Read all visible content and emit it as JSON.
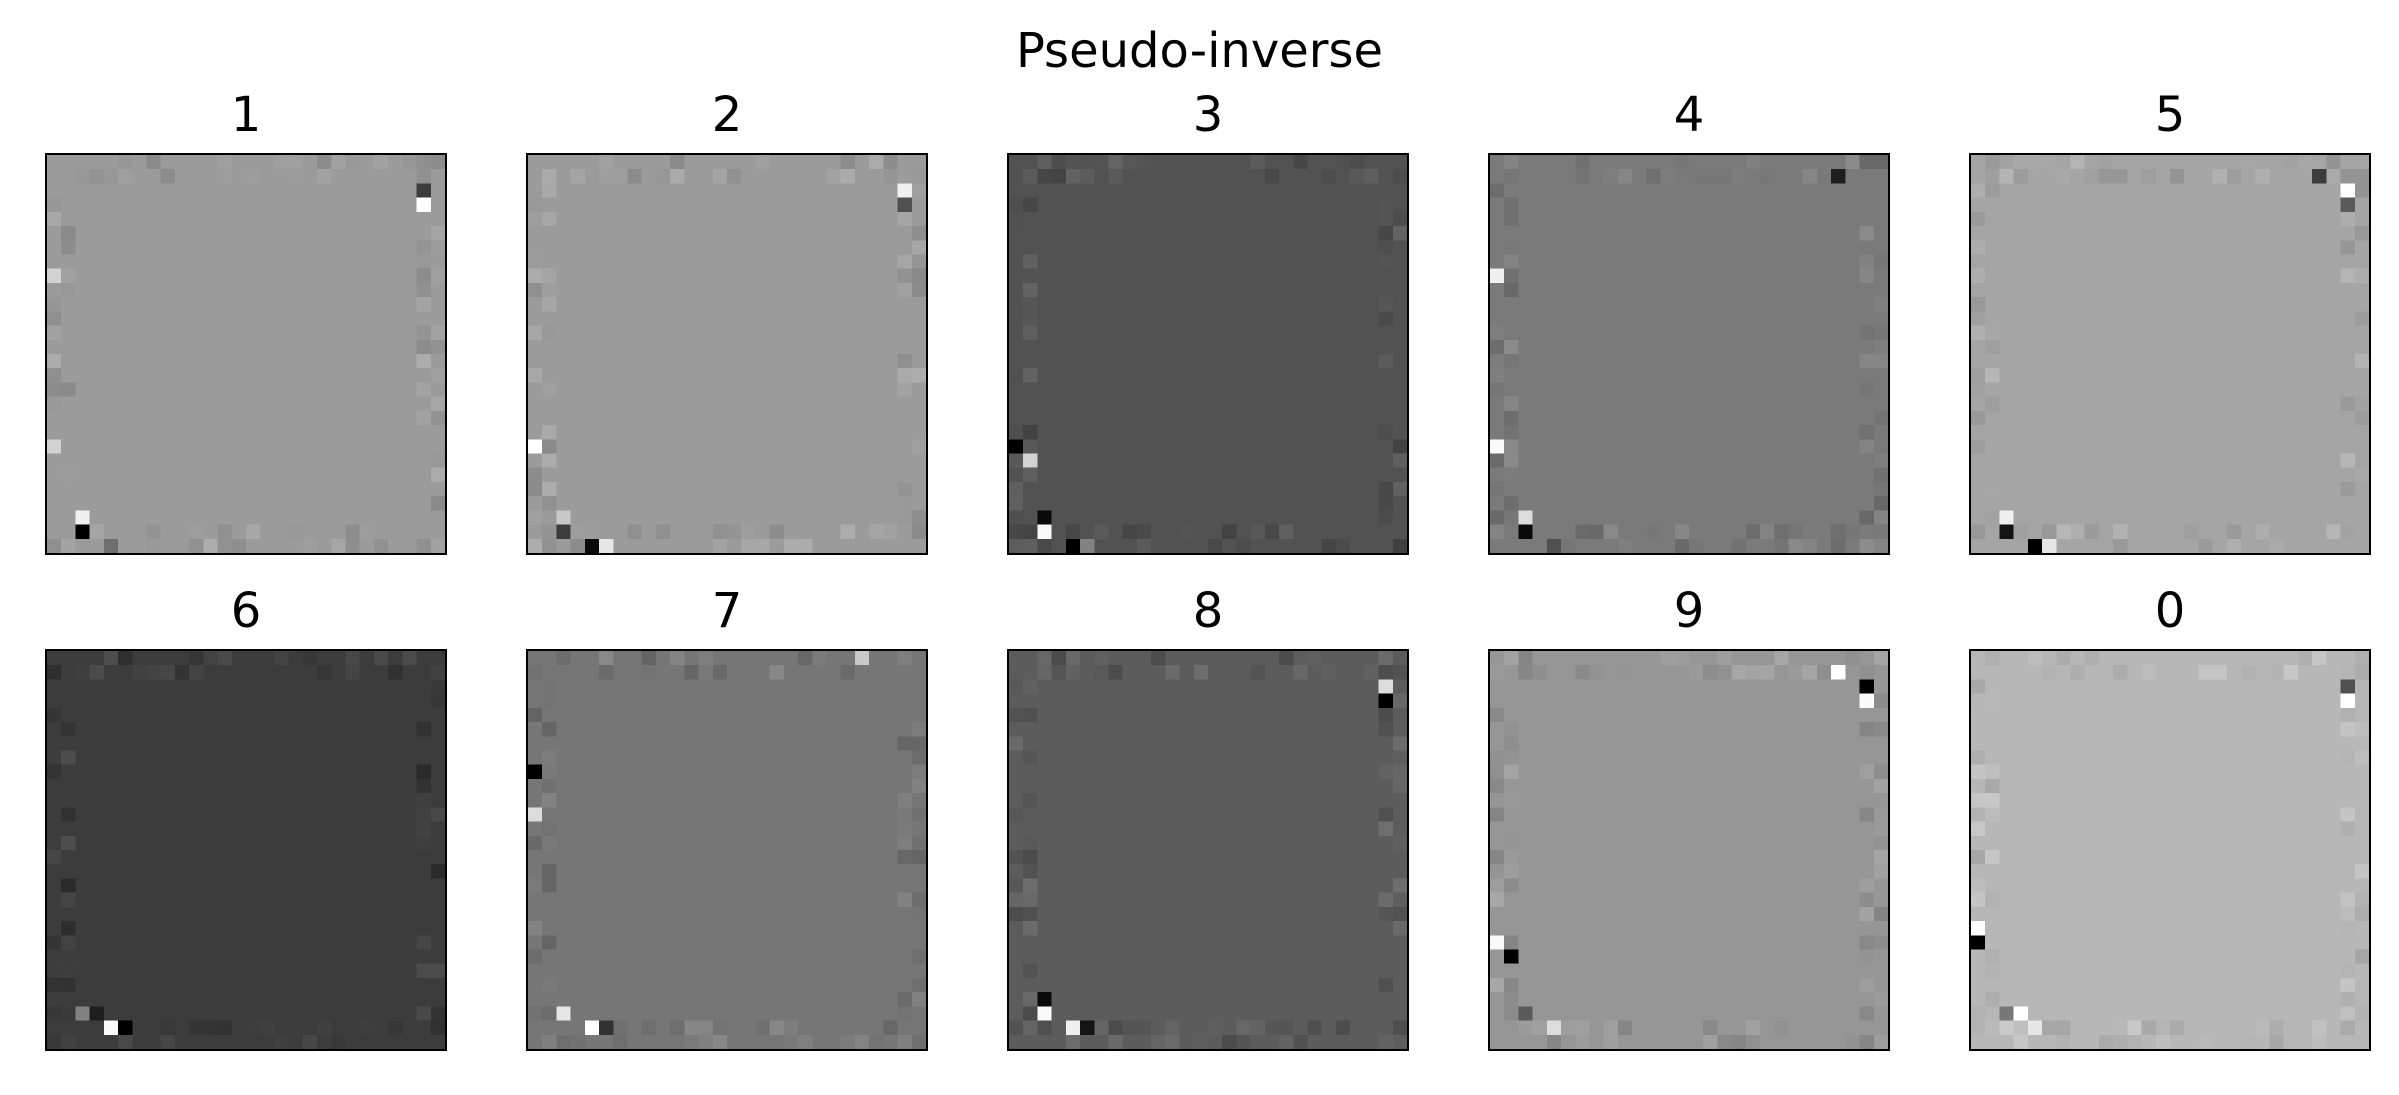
{
  "chart_data": {
    "type": "heatmap",
    "title": "Pseudo-inverse",
    "colormap": "gray",
    "grid": false,
    "axis_ticks": false,
    "layout": "2x5 grid",
    "panels": [
      {
        "label": "1",
        "grid_size": [
          28,
          28
        ],
        "background_gray": 155,
        "outliers": [
          {
            "row": 2,
            "col": 26,
            "gray": 60
          },
          {
            "row": 3,
            "col": 26,
            "gray": 255
          },
          {
            "row": 25,
            "col": 2,
            "gray": 240
          },
          {
            "row": 26,
            "col": 2,
            "gray": 0
          },
          {
            "row": 27,
            "col": 4,
            "gray": 110
          },
          {
            "row": 8,
            "col": 0,
            "gray": 210
          },
          {
            "row": 20,
            "col": 0,
            "gray": 210
          }
        ]
      },
      {
        "label": "2",
        "grid_size": [
          28,
          28
        ],
        "background_gray": 155,
        "outliers": [
          {
            "row": 2,
            "col": 26,
            "gray": 240
          },
          {
            "row": 3,
            "col": 26,
            "gray": 80
          },
          {
            "row": 20,
            "col": 0,
            "gray": 255
          },
          {
            "row": 27,
            "col": 4,
            "gray": 10
          },
          {
            "row": 27,
            "col": 5,
            "gray": 230
          },
          {
            "row": 26,
            "col": 2,
            "gray": 60
          },
          {
            "row": 25,
            "col": 2,
            "gray": 200
          }
        ]
      },
      {
        "label": "3",
        "grid_size": [
          28,
          28
        ],
        "background_gray": 82,
        "outliers": [
          {
            "row": 20,
            "col": 0,
            "gray": 0
          },
          {
            "row": 21,
            "col": 1,
            "gray": 210
          },
          {
            "row": 25,
            "col": 2,
            "gray": 10
          },
          {
            "row": 26,
            "col": 2,
            "gray": 250
          },
          {
            "row": 27,
            "col": 4,
            "gray": 0
          },
          {
            "row": 27,
            "col": 5,
            "gray": 130
          }
        ]
      },
      {
        "label": "4",
        "grid_size": [
          28,
          28
        ],
        "background_gray": 122,
        "outliers": [
          {
            "row": 1,
            "col": 24,
            "gray": 30
          },
          {
            "row": 8,
            "col": 0,
            "gray": 240
          },
          {
            "row": 20,
            "col": 0,
            "gray": 250
          },
          {
            "row": 26,
            "col": 2,
            "gray": 10
          },
          {
            "row": 25,
            "col": 2,
            "gray": 220
          },
          {
            "row": 27,
            "col": 4,
            "gray": 80
          }
        ]
      },
      {
        "label": "5",
        "grid_size": [
          28,
          28
        ],
        "background_gray": 165,
        "outliers": [
          {
            "row": 1,
            "col": 24,
            "gray": 60
          },
          {
            "row": 2,
            "col": 26,
            "gray": 255
          },
          {
            "row": 3,
            "col": 26,
            "gray": 90
          },
          {
            "row": 26,
            "col": 2,
            "gray": 20
          },
          {
            "row": 25,
            "col": 2,
            "gray": 240
          },
          {
            "row": 27,
            "col": 4,
            "gray": 0
          },
          {
            "row": 27,
            "col": 5,
            "gray": 230
          }
        ]
      },
      {
        "label": "6",
        "grid_size": [
          28,
          28
        ],
        "background_gray": 60,
        "outliers": [
          {
            "row": 26,
            "col": 4,
            "gray": 250
          },
          {
            "row": 26,
            "col": 5,
            "gray": 0
          },
          {
            "row": 25,
            "col": 2,
            "gray": 130
          },
          {
            "row": 25,
            "col": 3,
            "gray": 30
          }
        ]
      },
      {
        "label": "7",
        "grid_size": [
          28,
          28
        ],
        "background_gray": 118,
        "outliers": [
          {
            "row": 0,
            "col": 23,
            "gray": 200
          },
          {
            "row": 8,
            "col": 0,
            "gray": 0
          },
          {
            "row": 11,
            "col": 0,
            "gray": 220
          },
          {
            "row": 25,
            "col": 2,
            "gray": 230
          },
          {
            "row": 26,
            "col": 4,
            "gray": 255
          },
          {
            "row": 26,
            "col": 5,
            "gray": 50
          }
        ]
      },
      {
        "label": "8",
        "grid_size": [
          28,
          28
        ],
        "background_gray": 92,
        "outliers": [
          {
            "row": 2,
            "col": 26,
            "gray": 220
          },
          {
            "row": 3,
            "col": 26,
            "gray": 0
          },
          {
            "row": 24,
            "col": 2,
            "gray": 10
          },
          {
            "row": 25,
            "col": 2,
            "gray": 250
          },
          {
            "row": 26,
            "col": 4,
            "gray": 240
          },
          {
            "row": 26,
            "col": 5,
            "gray": 20
          }
        ]
      },
      {
        "label": "9",
        "grid_size": [
          28,
          28
        ],
        "background_gray": 150,
        "outliers": [
          {
            "row": 1,
            "col": 24,
            "gray": 255
          },
          {
            "row": 2,
            "col": 26,
            "gray": 0
          },
          {
            "row": 3,
            "col": 26,
            "gray": 250
          },
          {
            "row": 20,
            "col": 0,
            "gray": 250
          },
          {
            "row": 21,
            "col": 1,
            "gray": 0
          },
          {
            "row": 26,
            "col": 4,
            "gray": 220
          },
          {
            "row": 25,
            "col": 2,
            "gray": 90
          }
        ]
      },
      {
        "label": "0",
        "grid_size": [
          28,
          28
        ],
        "background_gray": 183,
        "outliers": [
          {
            "row": 2,
            "col": 26,
            "gray": 80
          },
          {
            "row": 3,
            "col": 26,
            "gray": 255
          },
          {
            "row": 19,
            "col": 0,
            "gray": 255
          },
          {
            "row": 20,
            "col": 0,
            "gray": 0
          },
          {
            "row": 25,
            "col": 3,
            "gray": 255
          },
          {
            "row": 25,
            "col": 2,
            "gray": 120
          },
          {
            "row": 26,
            "col": 4,
            "gray": 230
          }
        ]
      }
    ]
  }
}
